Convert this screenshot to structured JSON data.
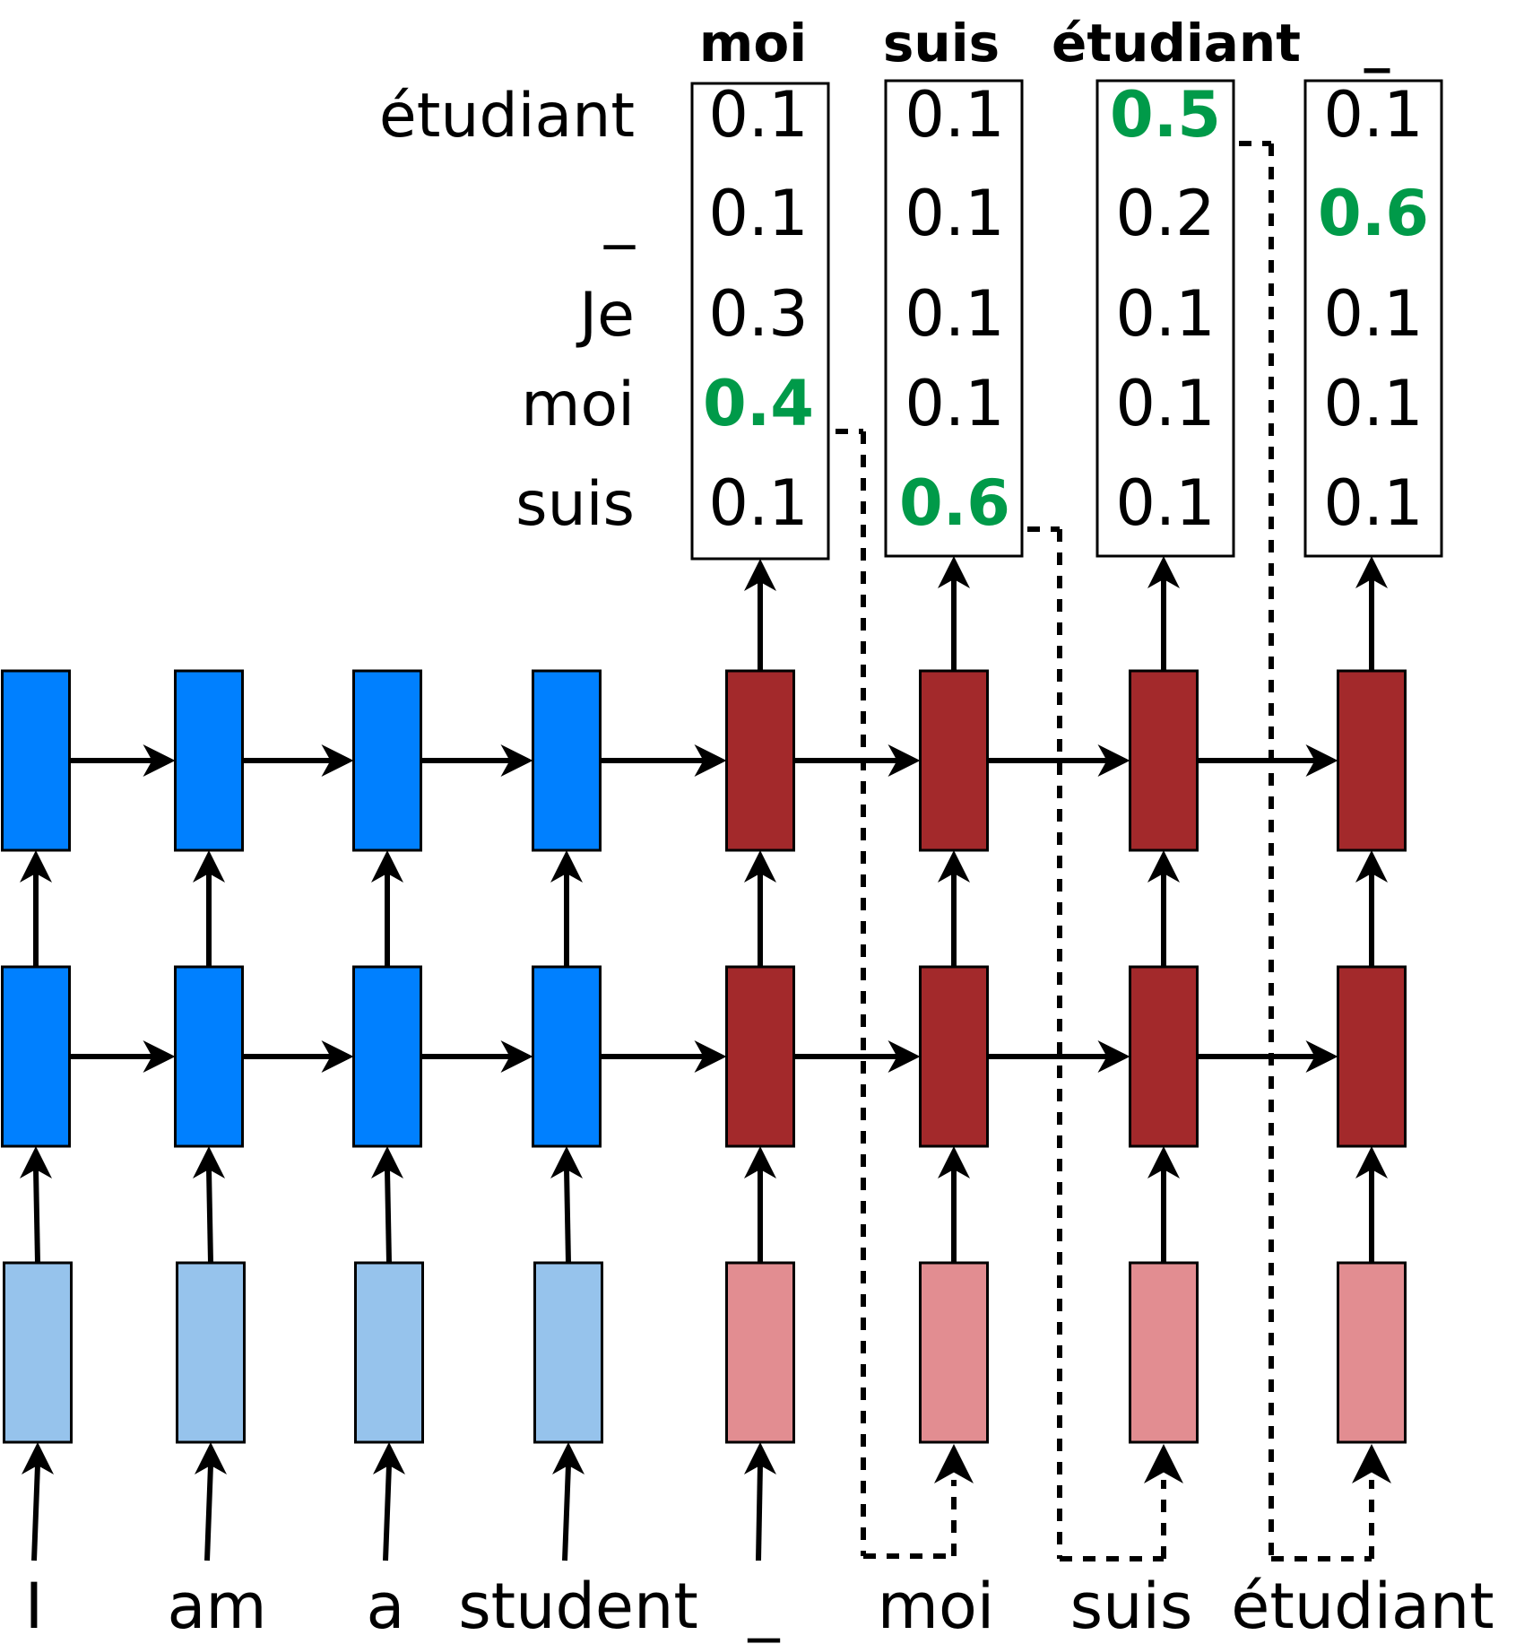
{
  "colors": {
    "encoder_hidden": "#0080ff",
    "encoder_embedding": "#96c3ec",
    "decoder_hidden": "#a3292b",
    "decoder_embedding": "#e28d91",
    "highlight": "#009a49",
    "stroke": "#000000"
  },
  "output_headers": [
    "moi",
    "suis",
    "étudiant",
    "_"
  ],
  "vocabulary": [
    "étudiant",
    "_",
    "Je",
    "moi",
    "suis"
  ],
  "distributions": [
    {
      "values": [
        "0.1",
        "0.1",
        "0.3",
        "0.4",
        "0.1"
      ],
      "highlight_index": 3
    },
    {
      "values": [
        "0.1",
        "0.1",
        "0.1",
        "0.1",
        "0.6"
      ],
      "highlight_index": 4
    },
    {
      "values": [
        "0.5",
        "0.2",
        "0.1",
        "0.1",
        "0.1"
      ],
      "highlight_index": 0
    },
    {
      "values": [
        "0.1",
        "0.6",
        "0.1",
        "0.1",
        "0.1"
      ],
      "highlight_index": 1
    }
  ],
  "source_tokens": [
    "I",
    "am",
    "a",
    "student"
  ],
  "decoder_input_tokens": [
    "_",
    "moi",
    "suis",
    "étudiant"
  ]
}
